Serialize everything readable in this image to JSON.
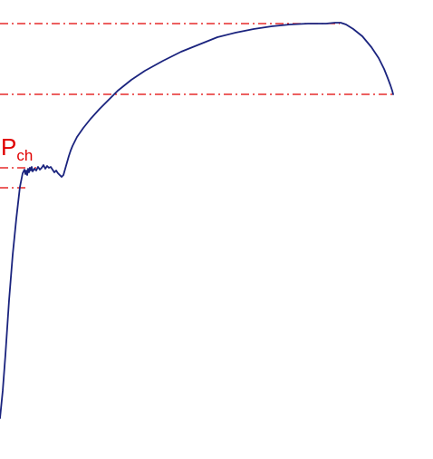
{
  "chart_data": {
    "type": "line",
    "title": "",
    "xlabel": "",
    "ylabel": "",
    "grid": false,
    "legend": "none",
    "annotation": {
      "main": "P",
      "sub": "ch",
      "color": "#e00000"
    },
    "reference_lines": [
      {
        "y": 480,
        "x_from": 0,
        "x_to": 375,
        "style": "dash-dot",
        "color": "#e00000"
      },
      {
        "y": 402,
        "x_from": 0,
        "x_to": 435,
        "style": "dash-dot",
        "color": "#e00000"
      },
      {
        "y": 321,
        "x_from": 0,
        "x_to": 40,
        "style": "dash-dot",
        "color": "#e00000"
      },
      {
        "y": 299,
        "x_from": 0,
        "x_to": 30,
        "style": "dash-dot",
        "color": "#e00000"
      }
    ],
    "series": [
      {
        "color": "#1a237e",
        "x": [
          0,
          3,
          6,
          10,
          14,
          18,
          22,
          25,
          27,
          28,
          29,
          30,
          31,
          32,
          33,
          34,
          35,
          36,
          38,
          40,
          42,
          44,
          46,
          48,
          50,
          52,
          54,
          56,
          58,
          60,
          62,
          64,
          66,
          68,
          70,
          72,
          74,
          76,
          78,
          80,
          85,
          92,
          100,
          110,
          120,
          130,
          145,
          160,
          180,
          200,
          220,
          240,
          260,
          280,
          300,
          320,
          340,
          360,
          370,
          376,
          382,
          390,
          400,
          410,
          418,
          424,
          428,
          431,
          433,
          434
        ],
        "y": [
          45,
          75,
          115,
          175,
          225,
          265,
          300,
          315,
          319,
          314,
          318,
          313,
          320,
          316,
          321,
          318,
          322,
          317,
          320,
          318,
          322,
          319,
          321,
          324,
          320,
          323,
          321,
          322,
          319,
          316,
          318,
          315,
          313,
          311,
          313,
          320,
          327,
          334,
          340,
          345,
          355,
          365,
          375,
          386,
          396,
          406,
          418,
          428,
          439,
          449,
          457,
          465,
          470,
          474,
          477,
          479,
          480,
          480,
          481,
          481,
          479,
          474,
          466,
          454,
          442,
          430,
          420,
          412,
          406,
          402
        ]
      }
    ]
  }
}
